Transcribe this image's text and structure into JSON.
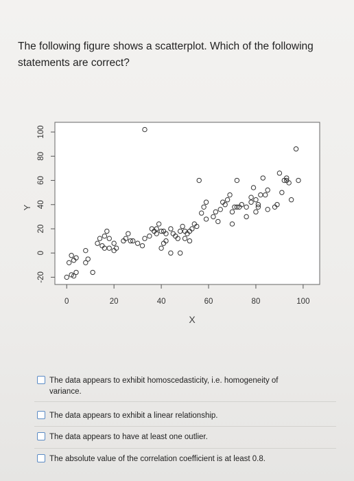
{
  "question": {
    "text": "The following figure shows a scatterplot. Which of the following statements are correct?"
  },
  "options": [
    {
      "label": "The data appears to exhibit homoscedasticity, i.e. homogeneity of variance.",
      "checked": false
    },
    {
      "label": "The data appears to exhibit a linear relationship.",
      "checked": false
    },
    {
      "label": "The data appears to have at least one outlier.",
      "checked": false
    },
    {
      "label": "The absolute value of the correlation coefficient is at least 0.8.",
      "checked": false
    }
  ],
  "chart_data": {
    "type": "scatter",
    "title": "",
    "xlabel": "X",
    "ylabel": "Y",
    "xlim": [
      -5,
      107
    ],
    "ylim": [
      -26,
      108
    ],
    "x_ticks": [
      0,
      20,
      40,
      60,
      80,
      100
    ],
    "y_ticks": [
      -20,
      0,
      20,
      40,
      60,
      80,
      100
    ],
    "grid": false,
    "marker": "open-circle",
    "marker_color": "#333333",
    "points": [
      [
        0,
        -20
      ],
      [
        2,
        -18
      ],
      [
        4,
        -16
      ],
      [
        3,
        -19
      ],
      [
        1,
        -8
      ],
      [
        3,
        -6
      ],
      [
        2,
        -2
      ],
      [
        4,
        -4
      ],
      [
        8,
        -8
      ],
      [
        8,
        2
      ],
      [
        9,
        -5
      ],
      [
        11,
        -16
      ],
      [
        13,
        8
      ],
      [
        14,
        12
      ],
      [
        15,
        6
      ],
      [
        16,
        14
      ],
      [
        17,
        18
      ],
      [
        18,
        12
      ],
      [
        16,
        4
      ],
      [
        18,
        4
      ],
      [
        20,
        2
      ],
      [
        21,
        4
      ],
      [
        20,
        8
      ],
      [
        24,
        10
      ],
      [
        25,
        12
      ],
      [
        26,
        16
      ],
      [
        27,
        10
      ],
      [
        28,
        10
      ],
      [
        30,
        8
      ],
      [
        32,
        6
      ],
      [
        33,
        12
      ],
      [
        35,
        14
      ],
      [
        36,
        20
      ],
      [
        37,
        18
      ],
      [
        38,
        16
      ],
      [
        38,
        20
      ],
      [
        39,
        24
      ],
      [
        40,
        18
      ],
      [
        41,
        18
      ],
      [
        42,
        16
      ],
      [
        42,
        10
      ],
      [
        40,
        4
      ],
      [
        41,
        8
      ],
      [
        44,
        20
      ],
      [
        45,
        16
      ],
      [
        46,
        14
      ],
      [
        47,
        12
      ],
      [
        48,
        18
      ],
      [
        49,
        22
      ],
      [
        50,
        18
      ],
      [
        51,
        16
      ],
      [
        52,
        18
      ],
      [
        53,
        20
      ],
      [
        54,
        24
      ],
      [
        55,
        22
      ],
      [
        50,
        12
      ],
      [
        52,
        10
      ],
      [
        44,
        0
      ],
      [
        48,
        0
      ],
      [
        56,
        60
      ],
      [
        57,
        33
      ],
      [
        58,
        38
      ],
      [
        59,
        42
      ],
      [
        59,
        28
      ],
      [
        62,
        30
      ],
      [
        63,
        34
      ],
      [
        65,
        36
      ],
      [
        64,
        26
      ],
      [
        66,
        42
      ],
      [
        67,
        40
      ],
      [
        68,
        44
      ],
      [
        69,
        48
      ],
      [
        70,
        24
      ],
      [
        70,
        34
      ],
      [
        71,
        38
      ],
      [
        72,
        38
      ],
      [
        73,
        38
      ],
      [
        72,
        60
      ],
      [
        74,
        40
      ],
      [
        76,
        30
      ],
      [
        76,
        38
      ],
      [
        78,
        42
      ],
      [
        78,
        46
      ],
      [
        79,
        54
      ],
      [
        80,
        44
      ],
      [
        81,
        40
      ],
      [
        81,
        38
      ],
      [
        80,
        34
      ],
      [
        82,
        48
      ],
      [
        83,
        62
      ],
      [
        84,
        48
      ],
      [
        85,
        36
      ],
      [
        85,
        52
      ],
      [
        88,
        38
      ],
      [
        89,
        40
      ],
      [
        90,
        66
      ],
      [
        91,
        50
      ],
      [
        92,
        60
      ],
      [
        93,
        62
      ],
      [
        94,
        58
      ],
      [
        93,
        60
      ],
      [
        95,
        44
      ],
      [
        97,
        86
      ],
      [
        98,
        60
      ],
      [
        33,
        102
      ]
    ]
  }
}
